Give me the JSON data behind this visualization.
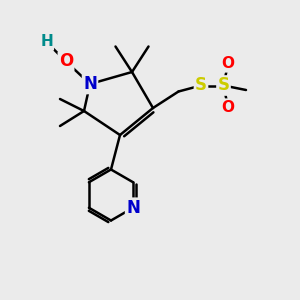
{
  "bg_color": "#ebebeb",
  "atom_colors": {
    "N": "#0000cc",
    "O": "#ff0000",
    "S": "#cccc00",
    "H": "#008b8b"
  },
  "bond_color": "#000000",
  "bond_width": 1.8
}
